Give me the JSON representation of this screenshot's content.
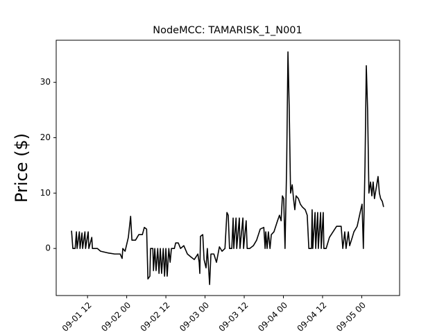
{
  "chart_data": {
    "type": "line",
    "title": "NodeMCC: TAMARISK_1_N001",
    "y_label": "Price ($)",
    "xlim": [
      2.4,
      107.6
    ],
    "ylim": [
      -8.5,
      37.6
    ],
    "xticks": [
      {
        "value": 12,
        "label": "09-01 12"
      },
      {
        "value": 24,
        "label": "09-02 00"
      },
      {
        "value": 36,
        "label": "09-02 12"
      },
      {
        "value": 48,
        "label": "09-03 00"
      },
      {
        "value": 60,
        "label": "09-03 12"
      },
      {
        "value": 72,
        "label": "09-04 00"
      },
      {
        "value": 84,
        "label": "09-04 12"
      },
      {
        "value": 96,
        "label": "09-05 00"
      }
    ],
    "yticks": [
      0,
      10,
      20,
      30
    ],
    "grid": false,
    "series": [
      {
        "color": "#000000",
        "x": [
          7.1,
          7.5,
          8.2,
          8.6,
          8.8,
          9.5,
          9.7,
          10.3,
          10.5,
          11.2,
          11.4,
          12.2,
          12.4,
          13.3,
          13.5,
          15.0,
          16.0,
          18.2,
          20.3,
          22.0,
          22.6,
          22.8,
          23.5,
          24.5,
          25.2,
          25.6,
          26.7,
          27.7,
          28.8,
          29.4,
          30.1,
          30.5,
          31.1,
          31.3,
          32.0,
          32.2,
          32.6,
          33.0,
          33.5,
          33.9,
          34.3,
          34.7,
          35.2,
          35.6,
          36.0,
          36.4,
          36.9,
          37.3,
          37.7,
          38.6,
          39.0,
          39.8,
          40.5,
          41.5,
          42.6,
          43.6,
          44.7,
          45.8,
          46.2,
          46.4,
          46.6,
          47.3,
          47.7,
          48.3,
          48.7,
          49.4,
          49.8,
          50.7,
          51.5,
          52.4,
          53.2,
          54.1,
          54.7,
          55.1,
          55.5,
          56.2,
          56.6,
          56.8,
          57.5,
          57.7,
          58.5,
          58.7,
          59.6,
          59.8,
          60.6,
          60.9,
          61.7,
          62.8,
          63.8,
          64.9,
          66.0,
          66.4,
          66.6,
          67.0,
          67.4,
          67.9,
          68.3,
          69.1,
          70.2,
          70.8,
          71.3,
          71.7,
          72.1,
          72.5,
          73.0,
          73.4,
          73.8,
          74.2,
          74.7,
          75.1,
          75.5,
          75.9,
          76.6,
          77.2,
          77.8,
          78.7,
          79.3,
          79.8,
          80.6,
          80.8,
          81.0,
          81.7,
          81.9,
          82.5,
          82.7,
          83.4,
          83.6,
          84.2,
          84.4,
          85.1,
          86.1,
          87.2,
          88.3,
          89.7,
          90.2,
          90.8,
          91.2,
          91.9,
          92.3,
          93.1,
          93.6,
          94.6,
          95.7,
          96.1,
          96.5,
          97.0,
          97.4,
          97.8,
          98.2,
          98.7,
          99.1,
          99.5,
          99.9,
          100.6,
          101.0,
          101.4,
          101.8,
          102.3,
          102.7
        ],
        "values": [
          3.2,
          0,
          0,
          3,
          0,
          3,
          0,
          2.8,
          0,
          3,
          0,
          3,
          0,
          2,
          0,
          0,
          -0.5,
          -0.8,
          -1,
          -1,
          -1.8,
          0,
          -0.5,
          2,
          5.8,
          1.5,
          1.5,
          2.5,
          2.5,
          3.8,
          3.5,
          -5.5,
          -5,
          0,
          0,
          -4,
          0,
          -4,
          0,
          -4.5,
          0,
          -4.5,
          0,
          -5,
          0,
          -5,
          0,
          -2.5,
          0,
          0,
          1,
          1,
          0,
          0.5,
          -1,
          -1.5,
          -2,
          -1,
          -2.5,
          -4.5,
          2.2,
          2.5,
          -2,
          -3.5,
          0,
          -6.5,
          -1,
          -1,
          -2.5,
          0.3,
          -0.5,
          0,
          6.5,
          6,
          0,
          0,
          5.5,
          0,
          5.5,
          0,
          5.5,
          0,
          5.5,
          0,
          5,
          0,
          0,
          0.5,
          1.5,
          3.5,
          3.8,
          0,
          3,
          0,
          3,
          0,
          2.5,
          3,
          5,
          6,
          5,
          9.5,
          9,
          0,
          15,
          35.5,
          25,
          10,
          11.5,
          9,
          7,
          9.5,
          9,
          8,
          7.5,
          7,
          6,
          0,
          0,
          7,
          0,
          6.5,
          0,
          6.5,
          0,
          6.5,
          0,
          6.5,
          0,
          0,
          2,
          3,
          4,
          4,
          0,
          3,
          0,
          3,
          0.5,
          2,
          3,
          4,
          7,
          8,
          0,
          15,
          33,
          25,
          10,
          12,
          9.5,
          12,
          9,
          11.5,
          13,
          10,
          9,
          8.5,
          7.5
        ]
      }
    ]
  }
}
